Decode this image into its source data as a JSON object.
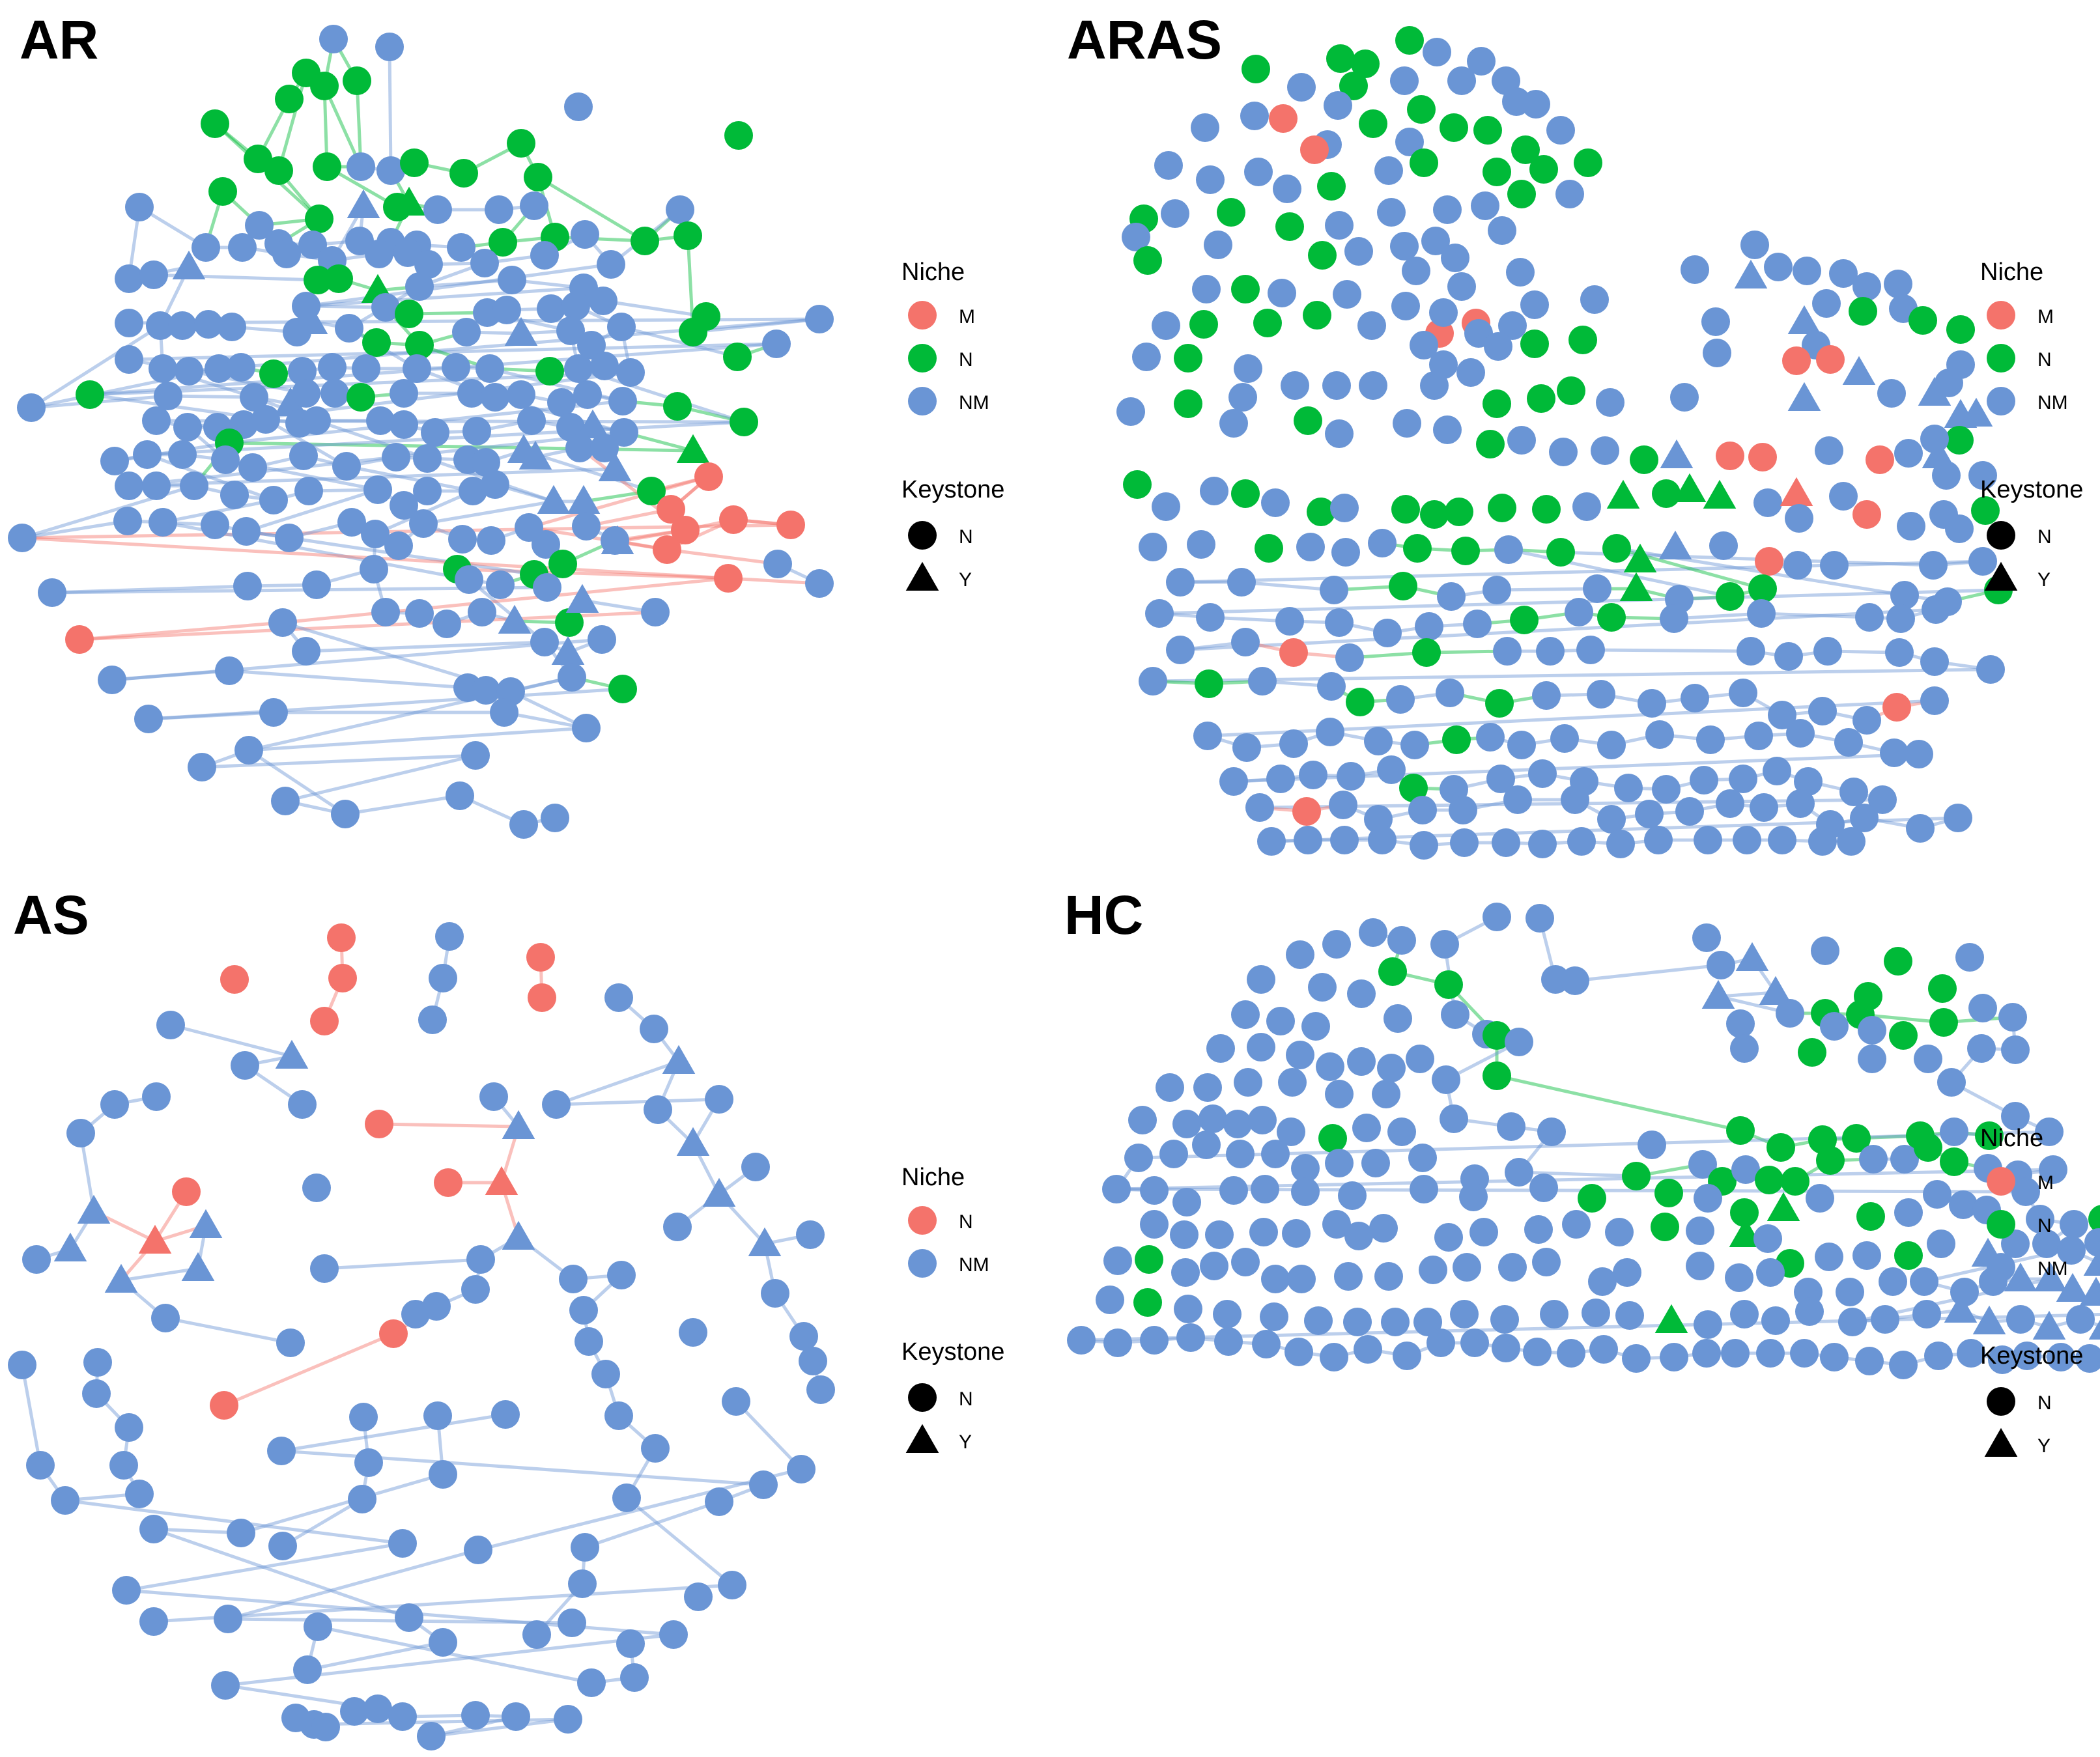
{
  "colors": {
    "M": "#f4736b",
    "N": "#00ba38",
    "NM": "#6a95d5",
    "black": "#000000"
  },
  "panels": [
    {
      "id": "AR",
      "title": "AR",
      "legend": {
        "niche_title": "Niche",
        "niche_items": [
          {
            "label": "M",
            "color_key": "M"
          },
          {
            "label": "N",
            "color_key": "N"
          },
          {
            "label": "NM",
            "color_key": "NM"
          }
        ],
        "keystone_title": "Keystone",
        "keystone_items": [
          {
            "label": "N",
            "shape": "circle"
          },
          {
            "label": "Y",
            "shape": "triangle"
          }
        ]
      }
    },
    {
      "id": "ARAS",
      "title": "ARAS",
      "legend": {
        "niche_title": "Niche",
        "niche_items": [
          {
            "label": "M",
            "color_key": "M"
          },
          {
            "label": "N",
            "color_key": "N"
          },
          {
            "label": "NM",
            "color_key": "NM"
          }
        ],
        "keystone_title": "Keystone",
        "keystone_items": [
          {
            "label": "N",
            "shape": "circle"
          },
          {
            "label": "Y",
            "shape": "triangle"
          }
        ]
      }
    },
    {
      "id": "AS",
      "title": "AS",
      "legend": {
        "niche_title": "Niche",
        "niche_items": [
          {
            "label": "N",
            "color_key": "M"
          },
          {
            "label": "NM",
            "color_key": "NM"
          }
        ],
        "keystone_title": "Keystone",
        "keystone_items": [
          {
            "label": "N",
            "shape": "circle"
          },
          {
            "label": "Y",
            "shape": "triangle"
          }
        ]
      }
    },
    {
      "id": "HC",
      "title": "HC",
      "legend": {
        "niche_title": "Niche",
        "niche_items": [
          {
            "label": "M",
            "color_key": "M"
          },
          {
            "label": "N",
            "color_key": "N"
          },
          {
            "label": "NM",
            "color_key": "NM"
          }
        ],
        "keystone_title": "Keystone",
        "keystone_items": [
          {
            "label": "N",
            "shape": "circle"
          },
          {
            "label": "Y",
            "shape": "triangle"
          }
        ]
      }
    }
  ]
}
